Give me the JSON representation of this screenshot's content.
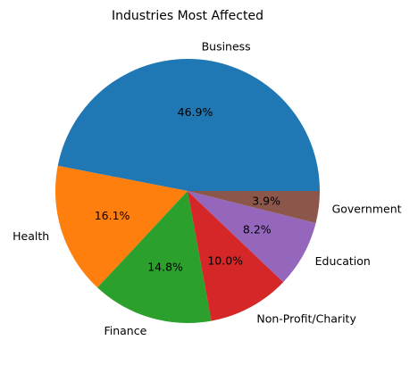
{
  "chart_data": {
    "type": "pie",
    "title": "Industries Most Affected",
    "slices": [
      {
        "label": "Business",
        "value": 46.9,
        "pct_label": "46.9%",
        "color": "#1f77b4"
      },
      {
        "label": "Health",
        "value": 16.1,
        "pct_label": "16.1%",
        "color": "#ff7f0e"
      },
      {
        "label": "Finance",
        "value": 14.8,
        "pct_label": "14.8%",
        "color": "#2ca02c"
      },
      {
        "label": "Non-Profit/Charity",
        "value": 10.0,
        "pct_label": "10.0%",
        "color": "#d62728"
      },
      {
        "label": "Education",
        "value": 8.2,
        "pct_label": "8.2%",
        "color": "#9467bd"
      },
      {
        "label": "Government",
        "value": 3.9,
        "pct_label": "3.9%",
        "color": "#8c564b"
      }
    ],
    "start_angle": 0,
    "direction": "counterclockwise",
    "legend": "none"
  }
}
